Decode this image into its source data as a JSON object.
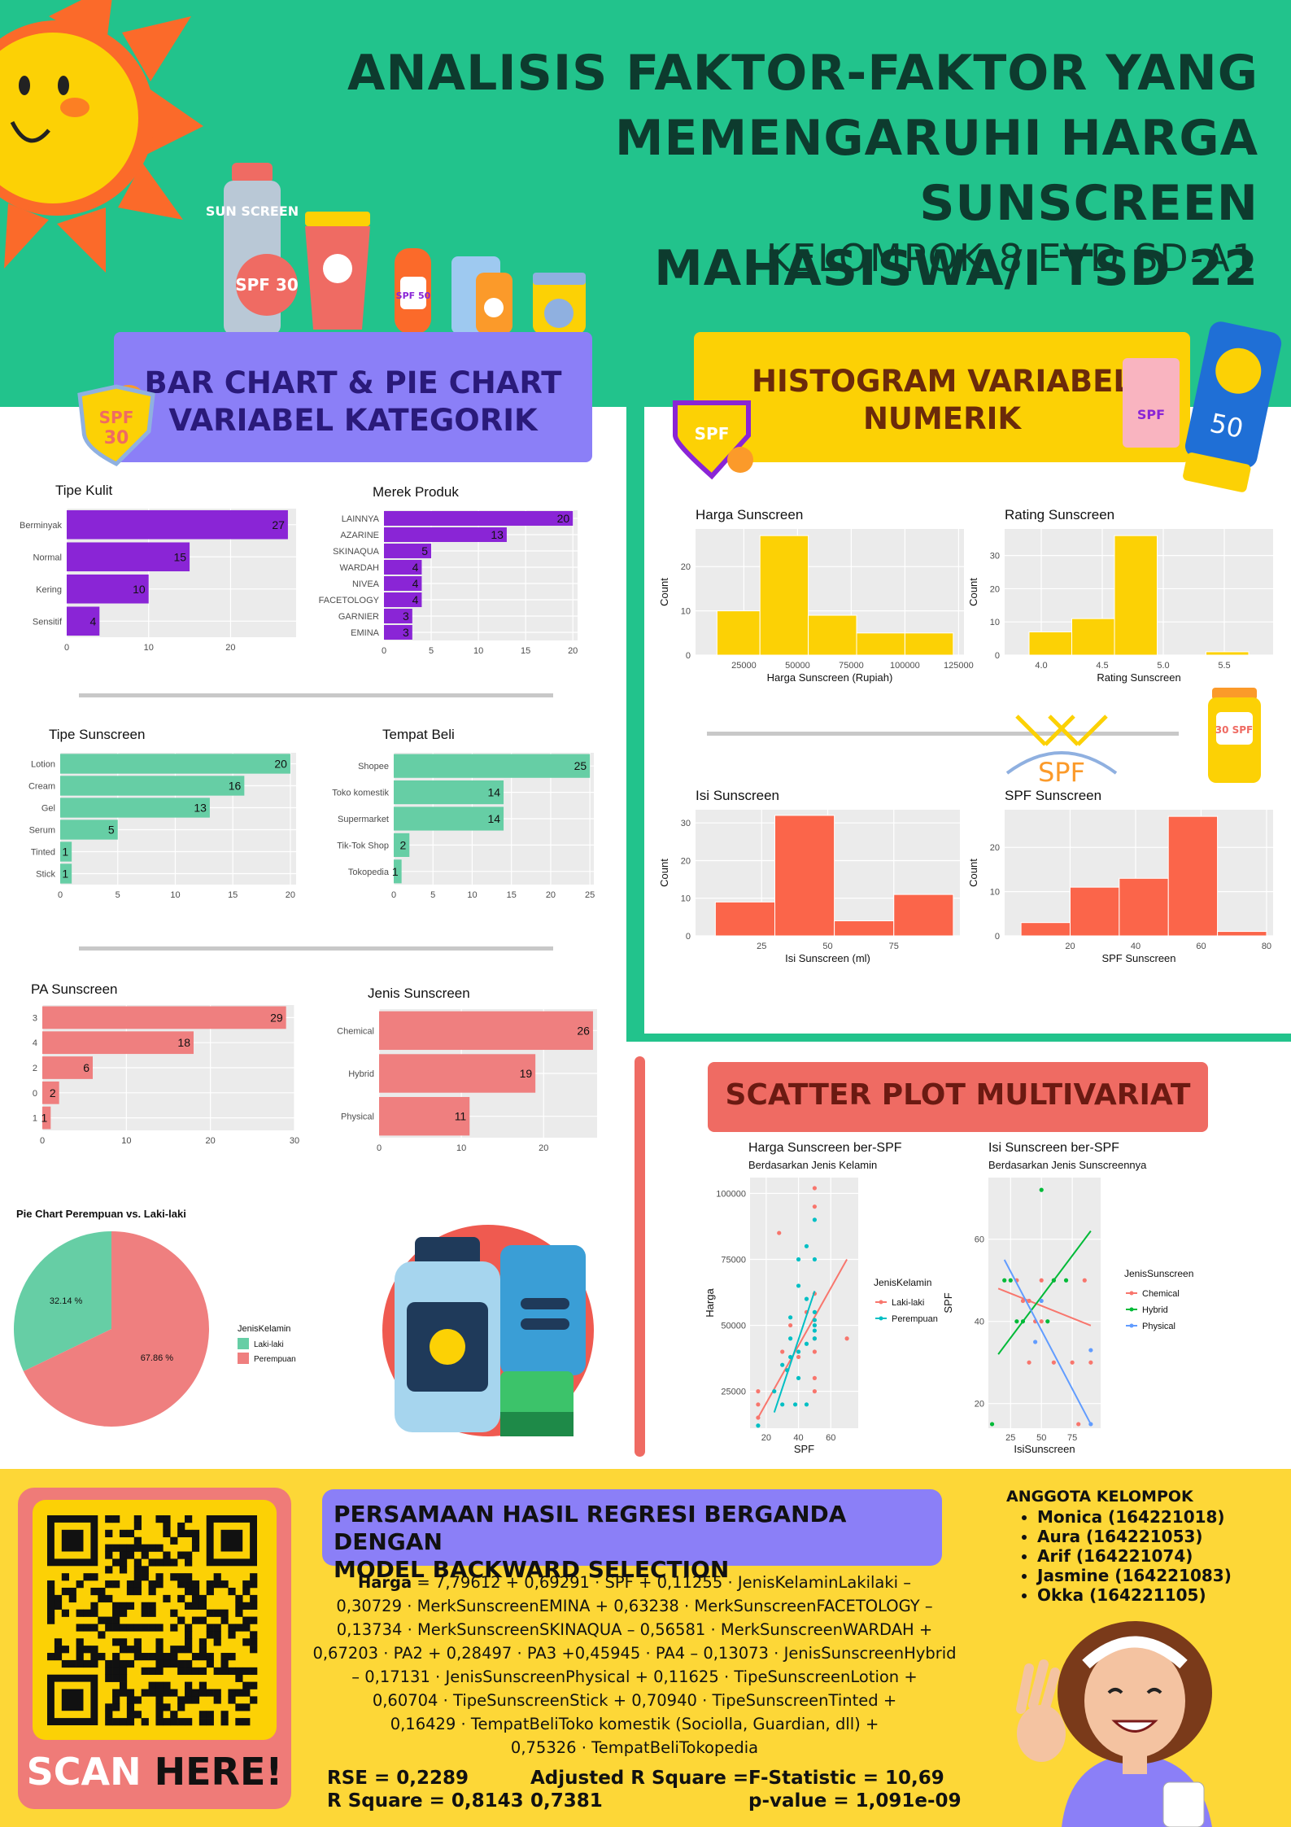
{
  "header": {
    "title_lines": [
      "ANALISIS FAKTOR-FAKTOR YANG",
      "MEMENGARUHI HARGA SUNSCREEN",
      "MAHASISWA/I TSD 22"
    ],
    "subtitle": "KELOMPOK 8 EVD SD-A1"
  },
  "sections": {
    "categorical": [
      "BAR CHART & PIE CHART",
      "VARIABEL KATEGORIK"
    ],
    "numeric": [
      "HISTOGRAM VARIABEL",
      "NUMERIK"
    ],
    "scatter": "SCATTER PLOT MULTIVARIAT"
  },
  "decor": {
    "sun_bottle": "SUN SCREEN",
    "spf30": "SPF 30",
    "spf50": "SPF 50",
    "spf": "SPF",
    "big50": "50",
    "spf30b": "30 SPF"
  },
  "chart_data": [
    {
      "id": "tipe_kulit",
      "type": "bar",
      "orientation": "horizontal",
      "title": "Tipe Kulit",
      "categories": [
        "Berminyak",
        "Normal",
        "Kering",
        "Sensitif"
      ],
      "values": [
        27,
        15,
        10,
        4
      ],
      "xticks": [
        0,
        10,
        20
      ],
      "xlim": [
        0,
        28
      ],
      "color": "#8a25d6"
    },
    {
      "id": "merek_produk",
      "type": "bar",
      "orientation": "horizontal",
      "title": "Merek Produk",
      "categories": [
        "LAINNYA",
        "AZARINE",
        "SKINAQUA",
        "WARDAH",
        "NIVEA",
        "FACETOLOGY",
        "GARNIER",
        "EMINA"
      ],
      "values": [
        20,
        13,
        5,
        4,
        4,
        4,
        3,
        3
      ],
      "xticks": [
        0,
        5,
        10,
        15,
        20
      ],
      "xlim": [
        0,
        20.5
      ],
      "color": "#8a25d6"
    },
    {
      "id": "tipe_sunscreen",
      "type": "bar",
      "orientation": "horizontal",
      "title": "Tipe Sunscreen",
      "categories": [
        "Lotion",
        "Cream",
        "Gel",
        "Serum",
        "Tinted",
        "Stick"
      ],
      "values": [
        20,
        16,
        13,
        5,
        1,
        1
      ],
      "xticks": [
        0,
        5,
        10,
        15,
        20
      ],
      "xlim": [
        0,
        20.5
      ],
      "color": "#66cea5"
    },
    {
      "id": "tempat_beli",
      "type": "bar",
      "orientation": "horizontal",
      "title": "Tempat Beli",
      "categories": [
        "Shopee",
        "Toko komestik",
        "Supermarket",
        "Tik-Tok Shop",
        "Tokopedia"
      ],
      "values": [
        25,
        14,
        14,
        2,
        1
      ],
      "xticks": [
        0,
        5,
        10,
        15,
        20,
        25
      ],
      "xlim": [
        0,
        25.5
      ],
      "color": "#66cea5"
    },
    {
      "id": "pa_sunscreen",
      "type": "bar",
      "orientation": "horizontal",
      "title": "PA Sunscreen",
      "categories": [
        "3",
        "4",
        "2",
        "0",
        "1"
      ],
      "values": [
        29,
        18,
        6,
        2,
        1
      ],
      "xticks": [
        0,
        10,
        20,
        30
      ],
      "xlim": [
        0,
        30
      ],
      "color": "#ef7f7f"
    },
    {
      "id": "jenis_sunscreen",
      "type": "bar",
      "orientation": "horizontal",
      "title": "Jenis Sunscreen",
      "categories": [
        "Chemical",
        "Hybrid",
        "Physical"
      ],
      "values": [
        26,
        19,
        11
      ],
      "xticks": [
        0,
        10,
        20
      ],
      "xlim": [
        0,
        26.5
      ],
      "color": "#ef7f7f"
    },
    {
      "id": "pie_gender",
      "type": "pie",
      "title": "Pie Chart Perempuan vs. Laki-laki",
      "legend_title": "JenisKelamin",
      "slices": [
        {
          "name": "Laki-laki",
          "value": 32.14,
          "label": "32.14 %",
          "color": "#66cea5"
        },
        {
          "name": "Perempuan",
          "value": 67.86,
          "label": "67.86 %",
          "color": "#ef7f7f"
        }
      ]
    },
    {
      "id": "hist_harga",
      "type": "bar",
      "subtype": "histogram",
      "title": "Harga Sunscreen",
      "xlabel": "Harga Sunscreen (Rupiah)",
      "ylabel": "Count",
      "bins": [
        [
          12500,
          32500,
          10
        ],
        [
          32500,
          55000,
          27
        ],
        [
          55000,
          77500,
          9
        ],
        [
          77500,
          100000,
          5
        ],
        [
          100000,
          122500,
          5
        ]
      ],
      "xlim": [
        2500,
        127500
      ],
      "ylim": [
        0,
        28.5
      ],
      "xticks": [
        {
          "v": 25000,
          "l": "25000"
        },
        {
          "v": 50000,
          "l": "50000"
        },
        {
          "v": 75000,
          "l": "75000"
        },
        {
          "v": 100000,
          "l": "100000"
        },
        {
          "v": 125000,
          "l": "125000"
        }
      ],
      "yticks": [
        0,
        10,
        20
      ],
      "color": "#fcd105"
    },
    {
      "id": "hist_rating",
      "type": "bar",
      "subtype": "histogram",
      "title": "Rating Sunscreen",
      "xlabel": "Rating Sunscreen",
      "ylabel": "Count",
      "bins": [
        [
          3.9,
          4.25,
          7
        ],
        [
          4.25,
          4.6,
          11
        ],
        [
          4.6,
          4.95,
          36
        ],
        [
          5.35,
          5.7,
          1
        ]
      ],
      "xlim": [
        3.7,
        5.9
      ],
      "ylim": [
        0,
        38
      ],
      "xticks": [
        {
          "v": 4.0,
          "l": "4.0"
        },
        {
          "v": 4.5,
          "l": "4.5"
        },
        {
          "v": 5.0,
          "l": "5.0"
        },
        {
          "v": 5.5,
          "l": "5.5"
        }
      ],
      "yticks": [
        0,
        10,
        20,
        30
      ],
      "color": "#fcd105"
    },
    {
      "id": "hist_isi",
      "type": "bar",
      "subtype": "histogram",
      "title": "Isi Sunscreen",
      "xlabel": "Isi Sunscreen (ml)",
      "ylabel": "Count",
      "bins": [
        [
          7.5,
          30,
          9
        ],
        [
          30,
          52.5,
          32
        ],
        [
          52.5,
          75,
          4
        ],
        [
          75,
          97.5,
          11
        ]
      ],
      "xlim": [
        0,
        100
      ],
      "ylim": [
        0,
        33.5
      ],
      "xticks": [
        {
          "v": 25,
          "l": "25"
        },
        {
          "v": 50,
          "l": "50"
        },
        {
          "v": 75,
          "l": "75"
        }
      ],
      "yticks": [
        0,
        10,
        20,
        30
      ],
      "color": "#fb654a"
    },
    {
      "id": "hist_spf",
      "type": "bar",
      "subtype": "histogram",
      "title": "SPF Sunscreen",
      "xlabel": "SPF Sunscreen",
      "ylabel": "Count",
      "bins": [
        [
          5,
          20,
          3
        ],
        [
          20,
          35,
          11
        ],
        [
          35,
          50,
          13
        ],
        [
          50,
          65,
          27
        ],
        [
          65,
          80,
          1
        ]
      ],
      "xlim": [
        0,
        82
      ],
      "ylim": [
        0,
        28.5
      ],
      "xticks": [
        {
          "v": 20,
          "l": "20"
        },
        {
          "v": 40,
          "l": "40"
        },
        {
          "v": 60,
          "l": "60"
        },
        {
          "v": 80,
          "l": "80"
        }
      ],
      "yticks": [
        0,
        10,
        20
      ],
      "color": "#fb654a"
    },
    {
      "id": "scatter_harga_spf",
      "type": "scatter",
      "title": "Harga Sunscreen ber-SPF",
      "subtitle": "Berdasarkan Jenis Kelamin",
      "xlabel": "SPF",
      "ylabel": "Harga",
      "xlim": [
        10,
        77
      ],
      "ylim": [
        11000,
        106000
      ],
      "xticks": [
        20,
        40,
        60
      ],
      "yticks": [
        25000,
        50000,
        75000,
        100000
      ],
      "legend_title": "JenisKelamin",
      "series": [
        {
          "name": "Laki-laki",
          "color": "#f8766d",
          "points": [
            [
              15,
              20000
            ],
            [
              15,
              15000
            ],
            [
              15,
              25000
            ],
            [
              28,
              85000
            ],
            [
              30,
              40000
            ],
            [
              35,
              50000
            ],
            [
              40,
              38000
            ],
            [
              45,
              55000
            ],
            [
              50,
              50000
            ],
            [
              50,
              45000
            ],
            [
              50,
              40000
            ],
            [
              50,
              30000
            ],
            [
              50,
              25000
            ],
            [
              50,
              102000
            ],
            [
              50,
              95000
            ],
            [
              50,
              62000
            ],
            [
              70,
              45000
            ]
          ],
          "fit": [
            [
              15,
              15000
            ],
            [
              70,
              75000
            ]
          ]
        },
        {
          "name": "Perempuan",
          "color": "#00bfc4",
          "points": [
            [
              15,
              12000
            ],
            [
              25,
              25000
            ],
            [
              30,
              35000
            ],
            [
              30,
              20000
            ],
            [
              33,
              33000
            ],
            [
              35,
              45000
            ],
            [
              35,
              53000
            ],
            [
              35,
              38000
            ],
            [
              38,
              20000
            ],
            [
              40,
              75000
            ],
            [
              40,
              65000
            ],
            [
              40,
              40000
            ],
            [
              40,
              30000
            ],
            [
              45,
              80000
            ],
            [
              45,
              60000
            ],
            [
              45,
              43000
            ],
            [
              45,
              20000
            ],
            [
              50,
              90000
            ],
            [
              50,
              75000
            ],
            [
              50,
              55000
            ],
            [
              50,
              52000
            ],
            [
              50,
              50000
            ],
            [
              50,
              48000
            ],
            [
              50,
              45000
            ]
          ],
          "fit": [
            [
              25,
              17000
            ],
            [
              50,
              63000
            ]
          ]
        }
      ]
    },
    {
      "id": "scatter_isi_spf",
      "type": "scatter",
      "title": "Isi Sunscreen ber-SPF",
      "subtitle": "Berdasarkan Jenis Sunscreennya",
      "xlabel": "IsiSunscreen",
      "ylabel": "SPF",
      "xlim": [
        7,
        98
      ],
      "ylim": [
        14,
        75
      ],
      "xticks": [
        25,
        50,
        75
      ],
      "yticks": [
        20,
        40,
        60
      ],
      "legend_title": "JenisSunscreen",
      "series": [
        {
          "name": "Chemical",
          "color": "#f8766d",
          "points": [
            [
              30,
              50
            ],
            [
              35,
              45
            ],
            [
              40,
              30
            ],
            [
              40,
              45
            ],
            [
              50,
              50
            ],
            [
              50,
              40
            ],
            [
              60,
              50
            ],
            [
              60,
              30
            ],
            [
              75,
              30
            ],
            [
              80,
              15
            ],
            [
              85,
              50
            ],
            [
              90,
              30
            ],
            [
              45,
              40
            ]
          ],
          "fit": [
            [
              15,
              48
            ],
            [
              90,
              39
            ]
          ]
        },
        {
          "name": "Hybrid",
          "color": "#00ba38",
          "points": [
            [
              10,
              15
            ],
            [
              20,
              50
            ],
            [
              25,
              50
            ],
            [
              35,
              40
            ],
            [
              50,
              72
            ],
            [
              55,
              40
            ],
            [
              60,
              50
            ],
            [
              70,
              50
            ],
            [
              30,
              40
            ]
          ],
          "fit": [
            [
              15,
              32
            ],
            [
              90,
              62
            ]
          ]
        },
        {
          "name": "Physical",
          "color": "#619cff",
          "points": [
            [
              45,
              35
            ],
            [
              50,
              45
            ],
            [
              90,
              15
            ],
            [
              90,
              33
            ]
          ],
          "fit": [
            [
              20,
              55
            ],
            [
              90,
              15
            ]
          ]
        }
      ]
    }
  ],
  "regression": {
    "title_lines": [
      "PERSAMAAN HASIL REGRESI BERGANDA DENGAN",
      "MODEL BACKWARD SELECTION"
    ],
    "lead": "Harga",
    "equation_lines": [
      " = 7,79612 + 0,69291 · SPF + 0,11255 · JenisKelaminLakilaki –",
      "0,30729 · MerkSunscreenEMINA + 0,63238 · MerkSunscreenFACETOLOGY –",
      "0,13734 · MerkSunscreenSKINAQUA – 0,56581 · MerkSunscreenWARDAH +",
      "0,67203 · PA2 + 0,28497 · PA3 +0,45945 · PA4 – 0,13073 · JenisSunscreenHybrid",
      "– 0,17131 · JenisSunscreenPhysical + 0,11625 · TipeSunscreenLotion +",
      "0,60704 · TipeSunscreenStick + 0,70940 · TipeSunscreenTinted +",
      "0,16429 · TempatBeliToko komestik (Sociolla, Guardian, dll) +",
      "0,75326 · TempatBeliTokopedia"
    ],
    "rse": "RSE = 0,2289",
    "r2": "R Square = 0,8143",
    "adj1": "Adjusted R Square =",
    "adj2": "0,7381",
    "f": "F-Statistic = 10,69",
    "p": "p-value = 1,091e-09"
  },
  "qr": {
    "scan": "SCAN",
    "here": "HERE!"
  },
  "anggota": {
    "title": "ANGGOTA KELOMPOK",
    "members": [
      "Monica (164221018)",
      "Aura (164221053)",
      "Arif (164221074)",
      "Jasmine (164221083)",
      "Okka (164221105)"
    ]
  }
}
